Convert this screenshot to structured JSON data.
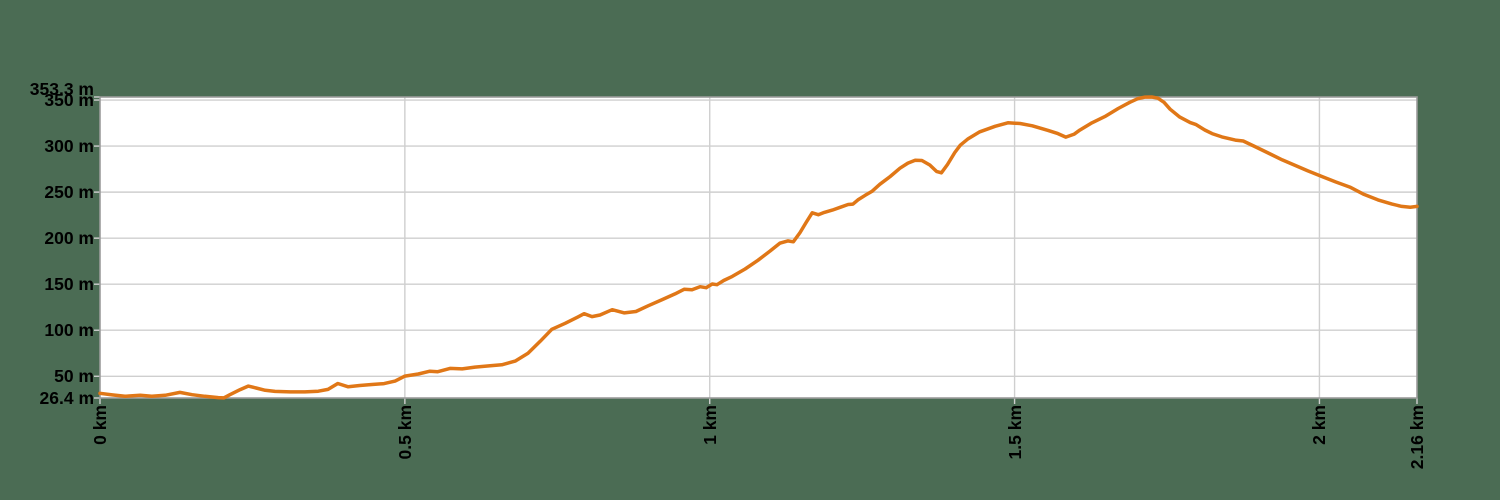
{
  "app": {
    "description": "elevation profile chart on transparent-style green background"
  },
  "colors": {
    "background": "#4B6C54",
    "plot_background": "#FFFFFF",
    "grid": "#CFCFCF",
    "plot_border": "#9B9B9B",
    "line": "#E07717",
    "label_text": "#000000"
  },
  "chart_data": {
    "type": "line",
    "title": "",
    "xlabel": "",
    "ylabel": "",
    "x_unit": "km",
    "y_unit": "m",
    "xlim": [
      0,
      2.16
    ],
    "ylim": [
      26.4,
      353.3
    ],
    "max_elevation_label": "353.3 m",
    "min_elevation_label": "26.4 m",
    "total_distance_label": "2.16 km",
    "grid": "on",
    "legend": "none",
    "y_ticks": [
      {
        "value": 353.3,
        "label": "353.3 m"
      },
      {
        "value": 350,
        "label": "350 m"
      },
      {
        "value": 300,
        "label": "300 m"
      },
      {
        "value": 250,
        "label": "250 m"
      },
      {
        "value": 200,
        "label": "200 m"
      },
      {
        "value": 150,
        "label": "150 m"
      },
      {
        "value": 100,
        "label": "100 m"
      },
      {
        "value": 50,
        "label": "50 m"
      },
      {
        "value": 26.4,
        "label": "26.4 m"
      }
    ],
    "x_ticks": [
      {
        "value": 0,
        "label": "0 km"
      },
      {
        "value": 0.5,
        "label": "0.5 km"
      },
      {
        "value": 1,
        "label": "1 km"
      },
      {
        "value": 1.5,
        "label": "1.5 km"
      },
      {
        "value": 2,
        "label": "2 km"
      },
      {
        "value": 2.16,
        "label": "2.16 km"
      }
    ],
    "series": [
      {
        "name": "elevation",
        "points": [
          [
            0.0,
            31.5
          ],
          [
            0.02,
            29.8
          ],
          [
            0.041,
            28.2
          ],
          [
            0.066,
            29.3
          ],
          [
            0.085,
            28.2
          ],
          [
            0.107,
            29.3
          ],
          [
            0.131,
            32.5
          ],
          [
            0.151,
            30.0
          ],
          [
            0.172,
            28.2
          ],
          [
            0.194,
            26.8
          ],
          [
            0.203,
            26.5
          ],
          [
            0.213,
            30.0
          ],
          [
            0.23,
            35.5
          ],
          [
            0.243,
            39.3
          ],
          [
            0.256,
            37.3
          ],
          [
            0.271,
            34.8
          ],
          [
            0.287,
            33.6
          ],
          [
            0.312,
            33.0
          ],
          [
            0.336,
            33.0
          ],
          [
            0.358,
            33.8
          ],
          [
            0.374,
            35.7
          ],
          [
            0.39,
            42.2
          ],
          [
            0.407,
            38.6
          ],
          [
            0.426,
            40.0
          ],
          [
            0.446,
            41.1
          ],
          [
            0.466,
            42.0
          ],
          [
            0.484,
            44.7
          ],
          [
            0.5,
            50.2
          ],
          [
            0.522,
            52.5
          ],
          [
            0.541,
            55.5
          ],
          [
            0.554,
            55.0
          ],
          [
            0.574,
            58.5
          ],
          [
            0.594,
            58.0
          ],
          [
            0.615,
            60.0
          ],
          [
            0.64,
            61.5
          ],
          [
            0.659,
            62.5
          ],
          [
            0.681,
            66.5
          ],
          [
            0.702,
            75.0
          ],
          [
            0.722,
            88.0
          ],
          [
            0.741,
            101.0
          ],
          [
            0.763,
            107.5
          ],
          [
            0.784,
            114.5
          ],
          [
            0.794,
            118.0
          ],
          [
            0.807,
            114.8
          ],
          [
            0.82,
            116.5
          ],
          [
            0.84,
            122.3
          ],
          [
            0.86,
            118.8
          ],
          [
            0.879,
            120.3
          ],
          [
            0.899,
            126.5
          ],
          [
            0.922,
            133.3
          ],
          [
            0.943,
            139.5
          ],
          [
            0.958,
            144.5
          ],
          [
            0.971,
            143.9
          ],
          [
            0.984,
            147.3
          ],
          [
            0.994,
            146.2
          ],
          [
            1.004,
            150.2
          ],
          [
            1.012,
            149.4
          ],
          [
            1.023,
            154.0
          ],
          [
            1.037,
            158.5
          ],
          [
            1.058,
            166.5
          ],
          [
            1.079,
            176.0
          ],
          [
            1.099,
            186.0
          ],
          [
            1.115,
            194.5
          ],
          [
            1.128,
            197.0
          ],
          [
            1.137,
            196.0
          ],
          [
            1.148,
            206.0
          ],
          [
            1.158,
            217.0
          ],
          [
            1.168,
            227.5
          ],
          [
            1.178,
            225.5
          ],
          [
            1.188,
            228.0
          ],
          [
            1.201,
            230.5
          ],
          [
            1.214,
            233.5
          ],
          [
            1.227,
            236.5
          ],
          [
            1.235,
            237.0
          ],
          [
            1.243,
            241.5
          ],
          [
            1.255,
            246.5
          ],
          [
            1.266,
            250.8
          ],
          [
            1.279,
            258.5
          ],
          [
            1.296,
            267.0
          ],
          [
            1.312,
            276.0
          ],
          [
            1.325,
            281.5
          ],
          [
            1.337,
            284.6
          ],
          [
            1.348,
            284.3
          ],
          [
            1.361,
            279.5
          ],
          [
            1.372,
            272.5
          ],
          [
            1.38,
            271.0
          ],
          [
            1.39,
            280.0
          ],
          [
            1.402,
            293.0
          ],
          [
            1.411,
            301.0
          ],
          [
            1.424,
            308.0
          ],
          [
            1.443,
            315.5
          ],
          [
            1.468,
            321.5
          ],
          [
            1.489,
            325.3
          ],
          [
            1.509,
            324.5
          ],
          [
            1.529,
            322.0
          ],
          [
            1.555,
            317.0
          ],
          [
            1.571,
            313.5
          ],
          [
            1.584,
            309.8
          ],
          [
            1.598,
            313.0
          ],
          [
            1.607,
            317.3
          ],
          [
            1.627,
            325.3
          ],
          [
            1.648,
            332.0
          ],
          [
            1.67,
            340.8
          ],
          [
            1.689,
            347.5
          ],
          [
            1.702,
            351.5
          ],
          [
            1.714,
            353.2
          ],
          [
            1.725,
            353.3
          ],
          [
            1.735,
            352.0
          ],
          [
            1.745,
            347.5
          ],
          [
            1.755,
            340.0
          ],
          [
            1.771,
            331.5
          ],
          [
            1.788,
            325.5
          ],
          [
            1.797,
            323.5
          ],
          [
            1.812,
            317.5
          ],
          [
            1.824,
            313.5
          ],
          [
            1.84,
            310.0
          ],
          [
            1.862,
            306.5
          ],
          [
            1.875,
            305.5
          ],
          [
            1.894,
            299.5
          ],
          [
            1.916,
            292.5
          ],
          [
            1.939,
            285.0
          ],
          [
            1.96,
            279.0
          ],
          [
            1.981,
            273.0
          ],
          [
            2.004,
            267.0
          ],
          [
            2.027,
            261.0
          ],
          [
            2.05,
            255.5
          ],
          [
            2.073,
            247.5
          ],
          [
            2.096,
            241.5
          ],
          [
            2.119,
            237.0
          ],
          [
            2.135,
            234.5
          ],
          [
            2.149,
            233.6
          ],
          [
            2.16,
            234.5
          ]
        ]
      }
    ]
  }
}
